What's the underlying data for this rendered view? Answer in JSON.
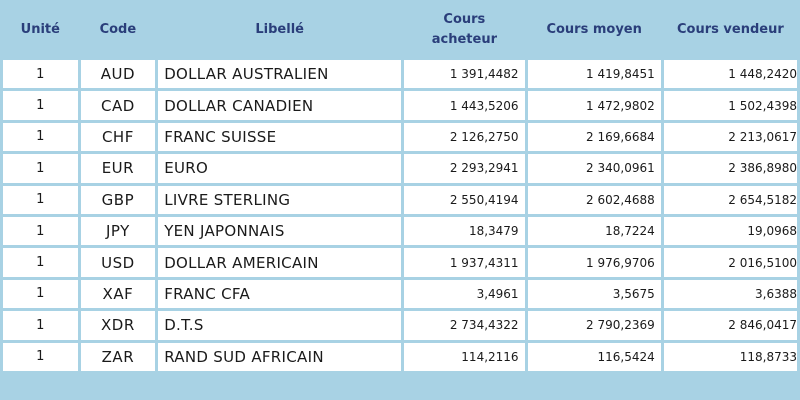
{
  "headers": {
    "unit": "Unité",
    "code": "Code",
    "label": "Libellé",
    "buy_line1": "Cours",
    "buy_line2": "acheteur",
    "mid": "Cours moyen",
    "sell": "Cours vendeur"
  },
  "rows": [
    {
      "unit": "1",
      "code": "AUD",
      "label": "DOLLAR AUSTRALIEN",
      "buy": "1 391,4482",
      "mid": "1 419,8451",
      "sell": "1 448,2420"
    },
    {
      "unit": "1",
      "code": "CAD",
      "label": "DOLLAR CANADIEN",
      "buy": "1 443,5206",
      "mid": "1 472,9802",
      "sell": "1 502,4398"
    },
    {
      "unit": "1",
      "code": "CHF",
      "label": "FRANC SUISSE",
      "buy": "2 126,2750",
      "mid": "2 169,6684",
      "sell": "2 213,0617"
    },
    {
      "unit": "1",
      "code": "EUR",
      "label": "EURO",
      "buy": "2 293,2941",
      "mid": "2 340,0961",
      "sell": "2 386,8980"
    },
    {
      "unit": "1",
      "code": "GBP",
      "label": "LIVRE STERLING",
      "buy": "2 550,4194",
      "mid": "2 602,4688",
      "sell": "2 654,5182"
    },
    {
      "unit": "1",
      "code": "JPY",
      "label": "YEN JAPONNAIS",
      "buy": "18,3479",
      "mid": "18,7224",
      "sell": "19,0968"
    },
    {
      "unit": "1",
      "code": "USD",
      "label": "DOLLAR AMERICAIN",
      "buy": "1 937,4311",
      "mid": "1 976,9706",
      "sell": "2 016,5100"
    },
    {
      "unit": "1",
      "code": "XAF",
      "label": "FRANC CFA",
      "buy": "3,4961",
      "mid": "3,5675",
      "sell": "3,6388"
    },
    {
      "unit": "1",
      "code": "XDR",
      "label": "D.T.S",
      "buy": "2 734,4322",
      "mid": "2 790,2369",
      "sell": "2 846,0417"
    },
    {
      "unit": "1",
      "code": "ZAR",
      "label": "RAND SUD AFRICAIN",
      "buy": "114,2116",
      "mid": "116,5424",
      "sell": "118,8733"
    }
  ],
  "colors": {
    "header_bg": "#a8d2e4",
    "header_text": "#2a3e7a",
    "cell_bg": "#ffffff"
  }
}
